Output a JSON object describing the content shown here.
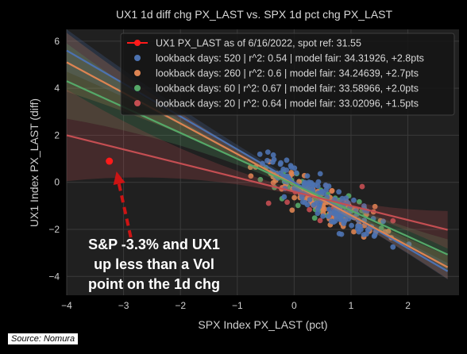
{
  "chart_data": {
    "type": "scatter",
    "title": "UX1 1d diff chg PX_LAST vs. SPX 1d pct chg PX_LAST",
    "xlabel": "SPX Index PX_LAST (pct)",
    "ylabel": "UX1 Index PX_LAST (diff)",
    "xlim": [
      -4,
      2.9
    ],
    "ylim": [
      -4.8,
      6.5
    ],
    "xticks": [
      -4,
      -3,
      -2,
      -1,
      0,
      1,
      2
    ],
    "yticks": [
      -4,
      -2,
      0,
      2,
      4,
      6
    ],
    "grid": true,
    "legend_position": "top-right",
    "highlight": {
      "label": "UX1 PX_LAST as of 6/16/2022, spot ref: 31.55",
      "x": -3.25,
      "y": 0.9,
      "color": "#ff1a1a"
    },
    "series": [
      {
        "name": "lookback days: 520 | r^2: 0.54 | model fair: 34.31926, +2.8pts",
        "color": "#4c72b0",
        "slope": -1.4,
        "intercept": 0.0
      },
      {
        "name": "lookback days: 260 | r^2: 0.6 | model fair: 34.24639, +2.7pts",
        "color": "#dd8452",
        "slope": -1.3,
        "intercept": -0.1
      },
      {
        "name": "lookback days: 60 | r^2: 0.67 | model fair: 33.58966, +2.0pts",
        "color": "#55a868",
        "slope": -1.1,
        "intercept": -0.1
      },
      {
        "name": "lookback days: 20 | r^2: 0.64 | model fair: 33.02096, +1.5pts",
        "color": "#c44e52",
        "slope": -0.6,
        "intercept": -0.4
      }
    ]
  },
  "annotation": {
    "lines": [
      "S&P -3.3% and UX1",
      "up less than a Vol",
      "point on the 1d chg"
    ]
  },
  "source": "Source: Nomura"
}
